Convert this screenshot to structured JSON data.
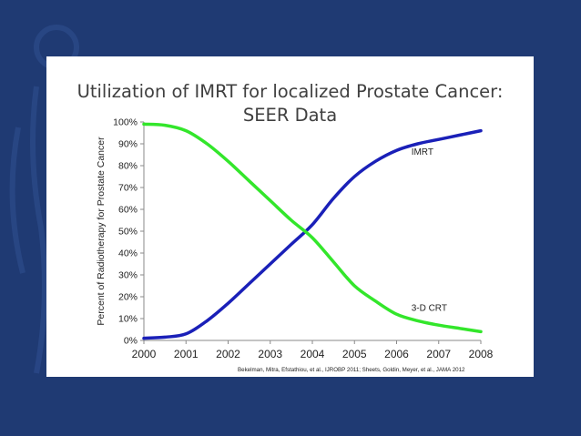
{
  "slide": {
    "background_color": "#1f3a73",
    "citation": "Bekelman, Mitra, Efstathiou, et al., IJROBP 2011; Sheets, Goldin, Meyer, et al., JAMA 2012"
  },
  "chart_data": {
    "type": "line",
    "title_line1": "Utilization of IMRT for localized Prostate Cancer:",
    "title_line2": "SEER Data",
    "xlabel": "",
    "ylabel": "Percent of Radiotherapy for Prostate Cancer",
    "x_ticks": [
      "2000",
      "2001",
      "2002",
      "2003",
      "2004",
      "2005",
      "2006",
      "2007",
      "2008"
    ],
    "y_ticks": [
      "0%",
      "10%",
      "20%",
      "30%",
      "40%",
      "50%",
      "60%",
      "70%",
      "80%",
      "90%",
      "100%"
    ],
    "xlim": [
      2000,
      2008
    ],
    "ylim": [
      0,
      100
    ],
    "grid": false,
    "series": [
      {
        "name": "IMRT",
        "color": "#1a20b8",
        "x": [
          2000,
          2000.5,
          2001,
          2001.5,
          2002,
          2002.5,
          2003,
          2003.5,
          2004,
          2004.5,
          2005,
          2005.5,
          2006,
          2006.5,
          2007,
          2007.5,
          2008
        ],
        "values": [
          1,
          1.5,
          3,
          9,
          17,
          26,
          35,
          44,
          53,
          65,
          75,
          82,
          87,
          90,
          92,
          94,
          96
        ]
      },
      {
        "name": "3-D CRT",
        "color": "#33e62b",
        "x": [
          2000,
          2000.5,
          2001,
          2001.5,
          2002,
          2002.5,
          2003,
          2003.5,
          2004,
          2004.5,
          2005,
          2005.5,
          2006,
          2006.5,
          2007,
          2007.5,
          2008
        ],
        "values": [
          99,
          98.5,
          96,
          90,
          82,
          73,
          64,
          55,
          47,
          36,
          25,
          18,
          12,
          9,
          7,
          5.5,
          4
        ]
      }
    ]
  }
}
